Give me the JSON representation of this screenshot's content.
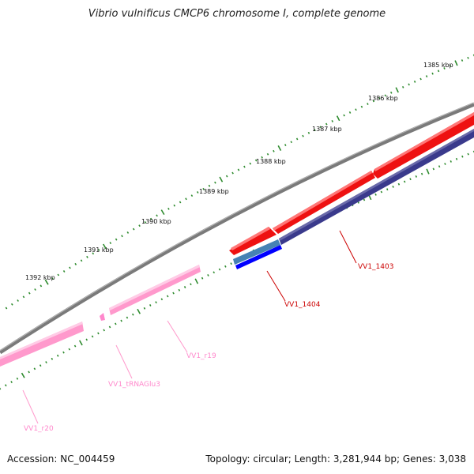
{
  "title": "Vibrio vulnificus CMCP6 chromosome I, complete genome",
  "footer": {
    "accession": "Accession: NC_004459",
    "info": "Topology: circular; Length: 3,281,944 bp; Genes: 3,038"
  },
  "ruler": {
    "labels": [
      "1385 kbp",
      "1386 kbp",
      "1387 kbp",
      "1388 kbp",
      "1389 kbp",
      "1390 kbp",
      "1391 kbp",
      "1392 kbp"
    ]
  },
  "features": [
    {
      "label": "VV1_1403",
      "type": "gene",
      "color": "#cc0000"
    },
    {
      "label": "VV1_1404",
      "type": "gene",
      "color": "#cc0000"
    },
    {
      "label": "VV1_r19",
      "type": "rRNA",
      "color": "#ff88cc"
    },
    {
      "label": "VV1_tRNAGlu3",
      "type": "tRNA",
      "color": "#ff88cc"
    },
    {
      "label": "VV1_r20",
      "type": "rRNA",
      "color": "#ff88cc"
    }
  ],
  "colors": {
    "backbone": "#808080",
    "ticks": "#2e8b2e",
    "cds": "#ee1111",
    "gene_dark": "#3a3a8c",
    "gene_mid": "#4682b4",
    "gene_blue": "#0000ff",
    "rna": "#ff99cc"
  }
}
